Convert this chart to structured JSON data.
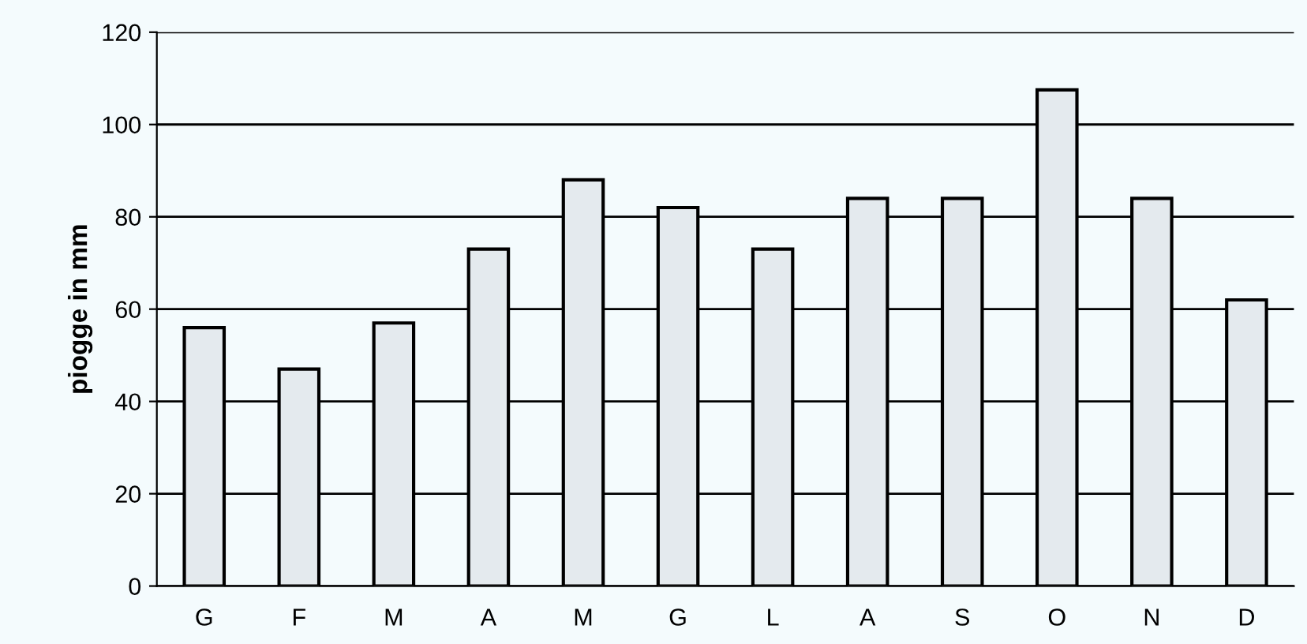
{
  "chart_data": {
    "type": "bar",
    "ylabel": "piogge in mm",
    "categories": [
      "G",
      "F",
      "M",
      "A",
      "M",
      "G",
      "L",
      "A",
      "S",
      "O",
      "N",
      "D"
    ],
    "values": [
      56,
      47,
      57,
      73,
      88,
      82,
      73,
      84,
      84,
      107.5,
      84,
      62
    ],
    "color": "#e4eaee",
    "ylim": [
      0,
      120
    ],
    "yticks": [
      0,
      20,
      40,
      60,
      80,
      100,
      120
    ],
    "grid": "y"
  }
}
